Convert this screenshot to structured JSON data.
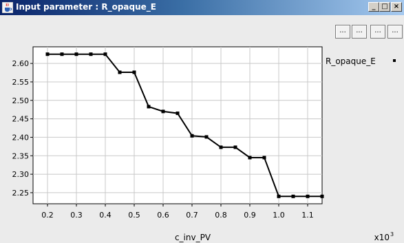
{
  "window": {
    "title": "Input parameter : R_opaque_E",
    "app_icon": "java-cup-icon",
    "controls": {
      "minimize": "_",
      "maximize": "□",
      "close": "×"
    }
  },
  "toolbar": {
    "buttons": [
      "...",
      "...",
      "...",
      "..."
    ]
  },
  "colors": {
    "plot_line": "#000000",
    "plot_background": "#ffffff",
    "grid": "#c8c8c8"
  },
  "chart_data": {
    "type": "line",
    "xlabel": "c_inv_PV",
    "x_multiplier": "x10",
    "x_multiplier_exp": "3",
    "x_ticks": [
      "0.2",
      "0.3",
      "0.4",
      "0.5",
      "0.6",
      "0.7",
      "0.8",
      "0.9",
      "1.0",
      "1.1"
    ],
    "y_ticks": [
      "2.25",
      "2.30",
      "2.35",
      "2.40",
      "2.45",
      "2.50",
      "2.55",
      "2.60"
    ],
    "xlim": [
      0.15,
      1.15
    ],
    "ylim": [
      2.22,
      2.645
    ],
    "grid": true,
    "legend_position": "top-right",
    "series": [
      {
        "name": "R_opaque_E",
        "marker": "square",
        "x": [
          0.2,
          0.25,
          0.3,
          0.35,
          0.4,
          0.45,
          0.5,
          0.55,
          0.6,
          0.65,
          0.7,
          0.75,
          0.8,
          0.85,
          0.9,
          0.95,
          1.0,
          1.05,
          1.1,
          1.15
        ],
        "y": [
          2.625,
          2.625,
          2.625,
          2.625,
          2.625,
          2.576,
          2.576,
          2.483,
          2.47,
          2.465,
          2.404,
          2.401,
          2.373,
          2.373,
          2.345,
          2.345,
          2.24,
          2.24,
          2.24,
          2.24
        ]
      }
    ]
  }
}
